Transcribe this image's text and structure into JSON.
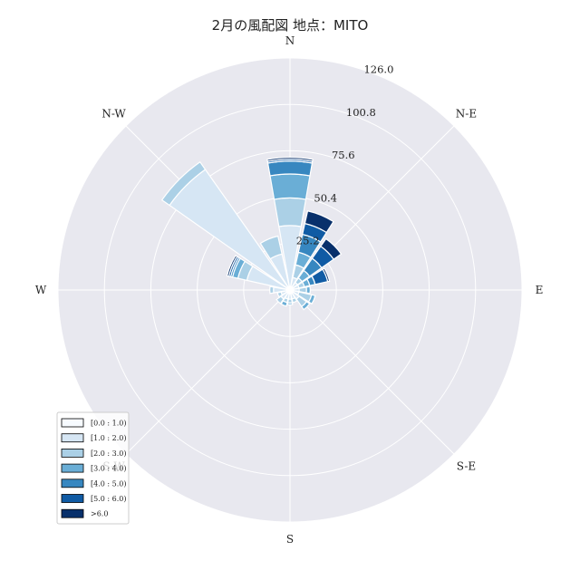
{
  "chart_data": {
    "type": "windrose",
    "title": "2月の風配図 地点：MITO",
    "directions": [
      "N",
      "N-E",
      "E",
      "S-E",
      "S",
      "S-W",
      "W",
      "N-W"
    ],
    "sectors": [
      "N",
      "NNE",
      "NE",
      "ENE",
      "E",
      "ESE",
      "SE",
      "SSE",
      "S",
      "SSW",
      "SW",
      "WSW",
      "W",
      "WNW",
      "NW",
      "NNW"
    ],
    "radial_ticks": [
      "25.2",
      "50.4",
      "75.6",
      "100.8",
      "126.0"
    ],
    "radial_tick_values": [
      25.2,
      50.4,
      75.6,
      100.8,
      126.0
    ],
    "rmax": 126.0,
    "legend": {
      "placement": "lower-left",
      "bins": [
        "[0.0 : 1.0)",
        "[1.0 : 2.0)",
        "[2.0 : 3.0)",
        "[3.0 : 4.0)",
        "[4.0 : 5.0)",
        "[5.0 : 6.0)",
        ">6.0"
      ],
      "colors": [
        "#f7fbff",
        "#d6e6f4",
        "#abd0e6",
        "#6aaed6",
        "#3787c0",
        "#105ba4",
        "#08306b"
      ]
    },
    "series": [
      {
        "name": "[0.0 : 1.0)",
        "values": [
          2,
          2,
          2,
          2,
          2,
          2,
          2,
          2,
          2,
          2,
          2,
          2,
          2,
          2,
          2,
          2
        ]
      },
      {
        "name": "[1.0 : 2.0)",
        "values": [
          33,
          5,
          3,
          3,
          3,
          3,
          4,
          3,
          3,
          3,
          4,
          3,
          7,
          22,
          78,
          18
        ]
      },
      {
        "name": "[2.0 : 3.0)",
        "values": [
          15,
          7,
          3,
          3,
          4,
          7,
          5,
          2,
          2,
          2,
          3,
          2,
          2,
          5,
          5,
          10
        ]
      },
      {
        "name": "[3.0 : 4.0)",
        "values": [
          13,
          7,
          5,
          3,
          2,
          2,
          2,
          0,
          1,
          2,
          0,
          0,
          0,
          3,
          0,
          0
        ]
      },
      {
        "name": "[4.0 : 5.0)",
        "values": [
          7,
          10,
          8,
          3,
          0,
          0,
          0,
          0,
          0,
          0,
          0,
          0,
          0,
          1,
          0,
          0
        ]
      },
      {
        "name": "[5.0 : 6.0)",
        "values": [
          1,
          6,
          8,
          7,
          0,
          0,
          0,
          0,
          0,
          0,
          0,
          0,
          0,
          1,
          0,
          0
        ]
      },
      {
        "name": ">6.0",
        "values": [
          1,
          7,
          5,
          1,
          0,
          0,
          0,
          0,
          0,
          0,
          0,
          0,
          0,
          1,
          0,
          0
        ]
      }
    ]
  }
}
